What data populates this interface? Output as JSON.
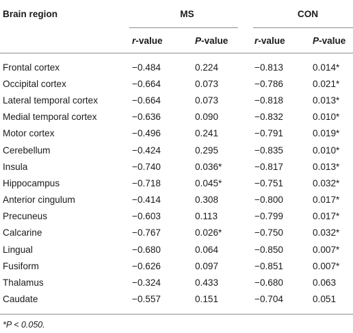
{
  "header": {
    "col0": "Brain region",
    "group_ms": "MS",
    "group_con": "CON",
    "sub": [
      "r",
      "-value",
      "P",
      "-value",
      "r",
      "-value",
      "P",
      "-value"
    ]
  },
  "rows": [
    [
      "Frontal cortex",
      "−0.484",
      "0.224",
      "−0.813",
      "0.014*"
    ],
    [
      "Occipital cortex",
      "−0.664",
      "0.073",
      "−0.786",
      "0.021*"
    ],
    [
      "Lateral temporal cortex",
      "−0.664",
      "0.073",
      "−0.818",
      "0.013*"
    ],
    [
      "Medial temporal cortex",
      "−0.636",
      "0.090",
      "−0.832",
      "0.010*"
    ],
    [
      "Motor cortex",
      "−0.496",
      "0.241",
      "−0.791",
      "0.019*"
    ],
    [
      "Cerebellum",
      "−0.424",
      "0.295",
      "−0.835",
      "0.010*"
    ],
    [
      "Insula",
      "−0.740",
      "0.036*",
      "−0.817",
      "0.013*"
    ],
    [
      "Hippocampus",
      "−0.718",
      "0.045*",
      "−0.751",
      "0.032*"
    ],
    [
      "Anterior cingulum",
      "−0.414",
      "0.308",
      "−0.800",
      "0.017*"
    ],
    [
      "Precuneus",
      "−0.603",
      "0.113",
      "−0.799",
      "0.017*"
    ],
    [
      "Calcarine",
      "−0.767",
      "0.026*",
      "−0.750",
      "0.032*"
    ],
    [
      "Lingual",
      "−0.680",
      "0.064",
      "−0.850",
      "0.007*"
    ],
    [
      "Fusiform",
      "−0.626",
      "0.097",
      "−0.851",
      "0.007*"
    ],
    [
      "Thalamus",
      "−0.324",
      "0.433",
      "−0.680",
      "0.063"
    ],
    [
      "Caudate",
      "−0.557",
      "0.151",
      "−0.704",
      "0.051"
    ]
  ],
  "footnote": "*P < 0.050."
}
